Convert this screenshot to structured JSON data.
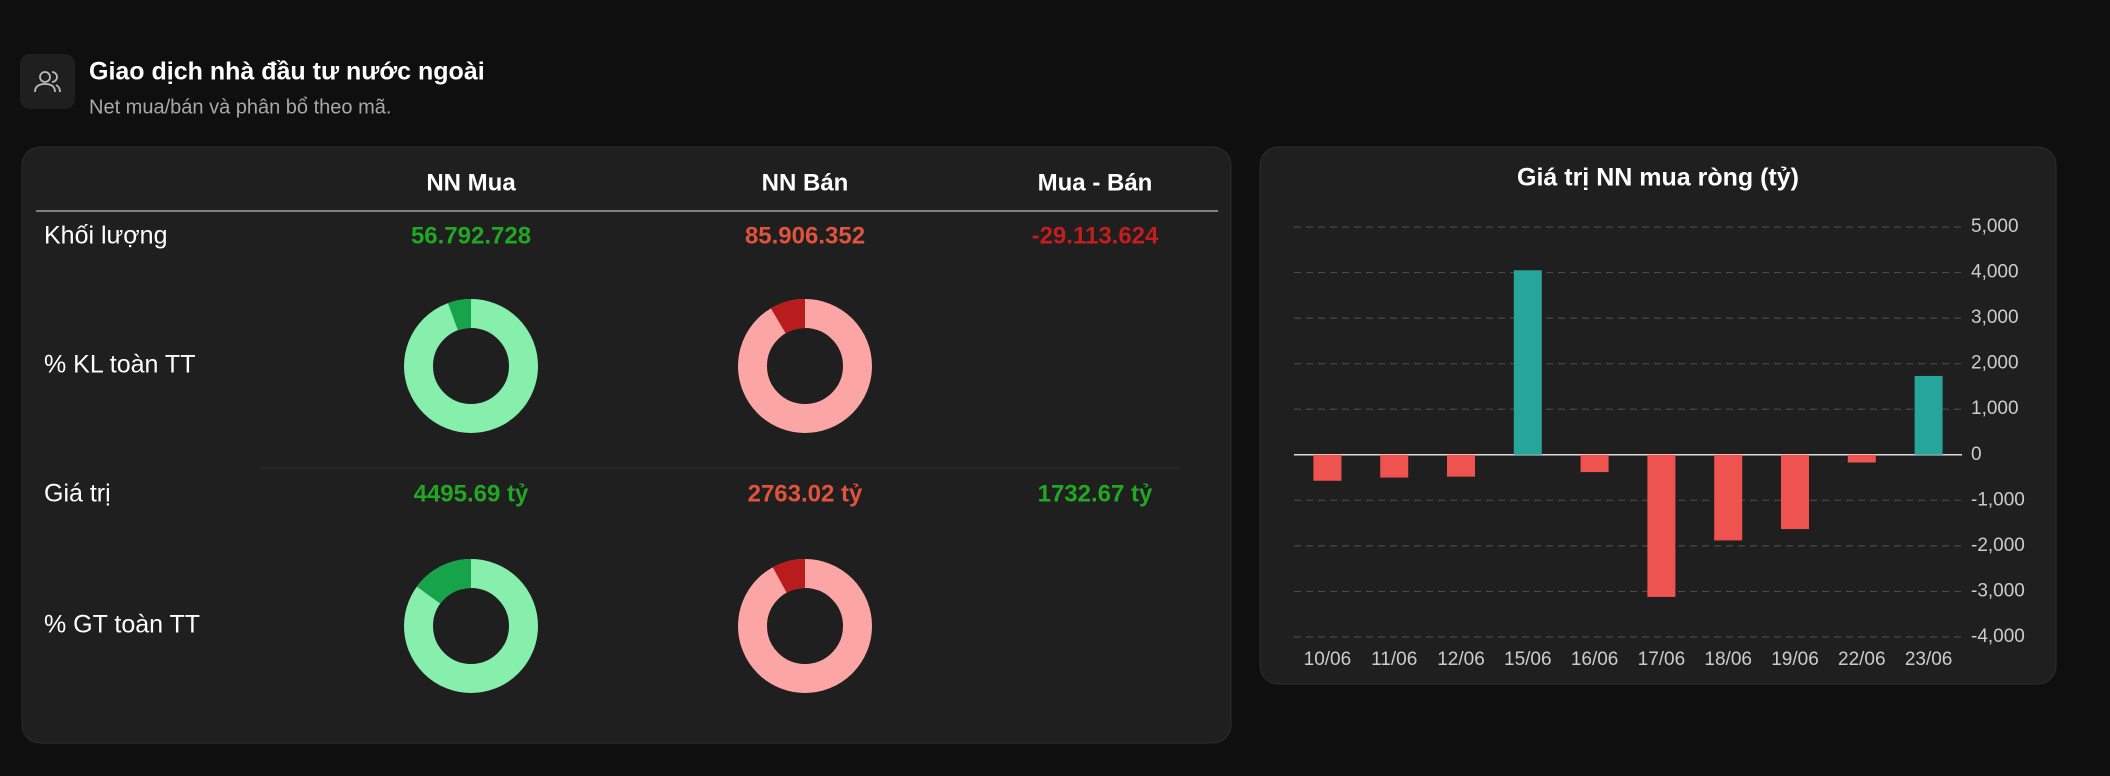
{
  "header": {
    "title": "Giao dịch nhà đầu tư nước ngoài",
    "subtitle": "Net mua/bán và phân bổ theo mã."
  },
  "table": {
    "columns": [
      "NN Mua",
      "NN Bán",
      "Mua - Bán"
    ],
    "rows": [
      {
        "label": "Khối lượng",
        "cells": [
          {
            "text": "56.792.728",
            "color": "#22a722"
          },
          {
            "text": "85.906.352",
            "color": "#e0533d"
          },
          {
            "text": "-29.113.624",
            "color": "#c41d1d"
          }
        ]
      },
      {
        "label": "% KL toàn TT",
        "donuts": [
          {
            "value": 5.6,
            "color": "#16a34a",
            "rest_color": "#86efac"
          },
          {
            "value": 8.5,
            "color": "#b91c1c",
            "rest_color": "#fca5a5"
          }
        ]
      },
      {
        "label": "Giá trị",
        "cells": [
          {
            "text": "4495.69 tỷ",
            "color": "#22a722"
          },
          {
            "text": "2763.02 tỷ",
            "color": "#e0533d"
          },
          {
            "text": "1732.67 tỷ",
            "color": "#22a722"
          }
        ]
      },
      {
        "label": "% GT toàn TT",
        "donuts": [
          {
            "value": 15,
            "color": "#16a34a",
            "rest_color": "#86efac"
          },
          {
            "value": 8,
            "color": "#b91c1c",
            "rest_color": "#fca5a5"
          }
        ]
      }
    ]
  },
  "chart_data": {
    "type": "bar",
    "title": "Giá trị NN mua ròng (tỷ)",
    "categories": [
      "10/06",
      "11/06",
      "12/06",
      "15/06",
      "16/06",
      "17/06",
      "18/06",
      "19/06",
      "22/06",
      "23/06"
    ],
    "values": [
      -570,
      -500,
      -480,
      4050,
      -380,
      -3120,
      -1880,
      -1630,
      -170,
      1730
    ],
    "positive_color": "#26a69a",
    "negative_color": "#ef5350",
    "ylim": [
      -4000,
      5000
    ],
    "yticks": [
      {
        "value": -4000,
        "label": "-4,000"
      },
      {
        "value": -3000,
        "label": "-3,000"
      },
      {
        "value": -2000,
        "label": "-2,000"
      },
      {
        "value": -1000,
        "label": "-1,000"
      },
      0,
      {
        "value": 1000,
        "label": "1,000"
      },
      {
        "value": 2000,
        "label": "2,000"
      },
      {
        "value": 3000,
        "label": "3,000"
      },
      {
        "value": 4000,
        "label": "4,000"
      },
      {
        "value": 5000,
        "label": "5,000"
      }
    ],
    "grid": true
  }
}
